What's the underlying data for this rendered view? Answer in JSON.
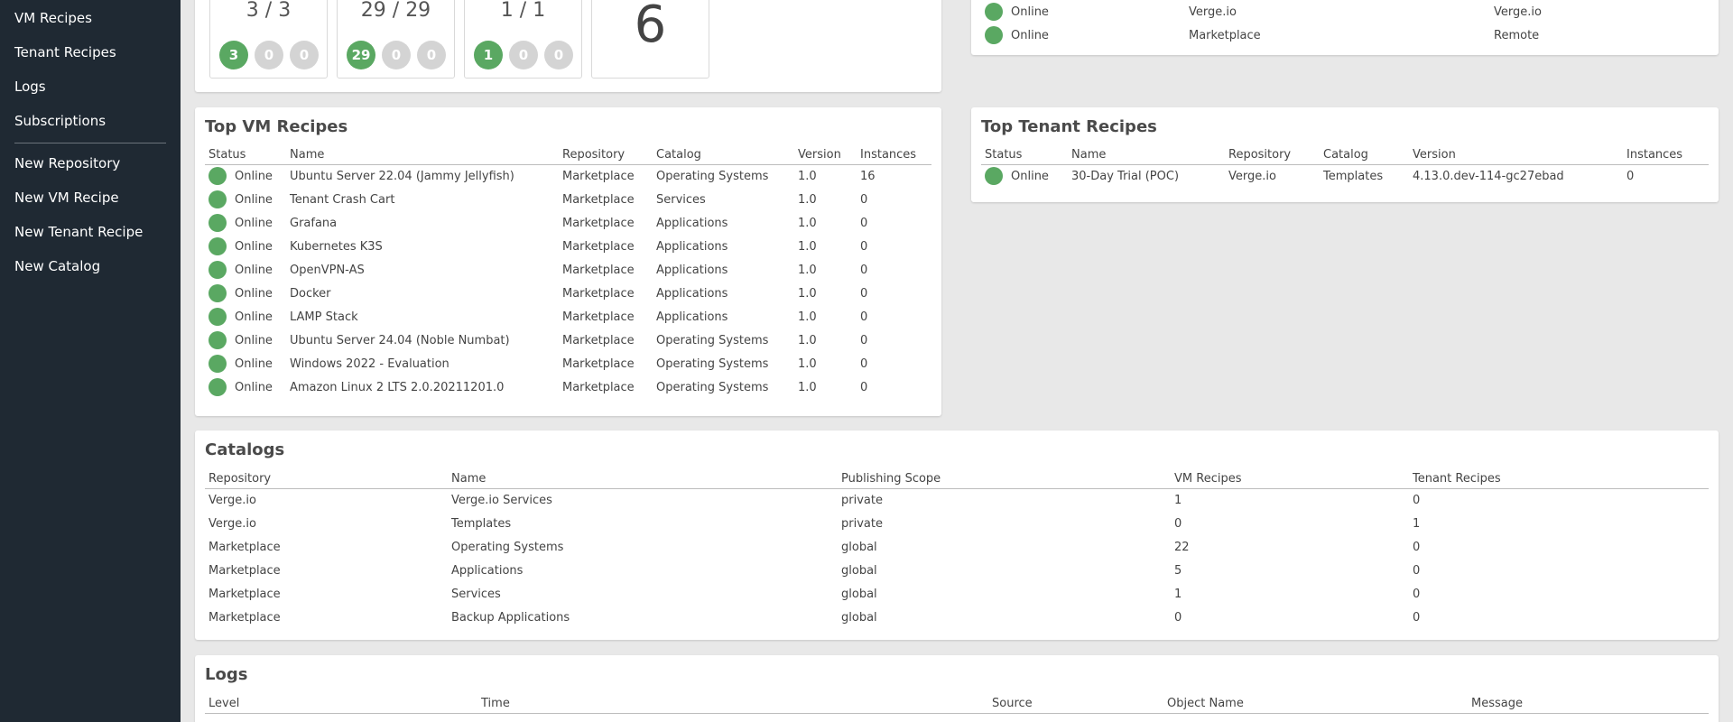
{
  "sidebar": {
    "items_top": [
      "VM Recipes",
      "Tenant Recipes",
      "Logs",
      "Subscriptions"
    ],
    "items_bottom": [
      "New Repository",
      "New VM Recipe",
      "New Tenant Recipe",
      "New Catalog"
    ]
  },
  "stats": {
    "cards": [
      {
        "ratio": "3 / 3",
        "badges": [
          "3",
          "0",
          "0"
        ]
      },
      {
        "ratio": "29 / 29",
        "badges": [
          "29",
          "0",
          "0"
        ]
      },
      {
        "ratio": "1 / 1",
        "badges": [
          "1",
          "0",
          "0"
        ]
      }
    ],
    "big_number": "6"
  },
  "repositories_partial": {
    "rows": [
      {
        "status": "Online",
        "name": "Verge.io",
        "type": "Verge.io"
      },
      {
        "status": "Online",
        "name": "Marketplace",
        "type": "Remote"
      }
    ]
  },
  "top_vm_recipes": {
    "title": "Top VM Recipes",
    "headers": [
      "Status",
      "Name",
      "Repository",
      "Catalog",
      "Version",
      "Instances"
    ],
    "rows": [
      {
        "status": "Online",
        "name": "Ubuntu Server 22.04 (Jammy Jellyfish)",
        "repository": "Marketplace",
        "catalog": "Operating Systems",
        "version": "1.0",
        "instances": "16"
      },
      {
        "status": "Online",
        "name": "Tenant Crash Cart",
        "repository": "Marketplace",
        "catalog": "Services",
        "version": "1.0",
        "instances": "0"
      },
      {
        "status": "Online",
        "name": "Grafana",
        "repository": "Marketplace",
        "catalog": "Applications",
        "version": "1.0",
        "instances": "0"
      },
      {
        "status": "Online",
        "name": "Kubernetes K3S",
        "repository": "Marketplace",
        "catalog": "Applications",
        "version": "1.0",
        "instances": "0"
      },
      {
        "status": "Online",
        "name": "OpenVPN-AS",
        "repository": "Marketplace",
        "catalog": "Applications",
        "version": "1.0",
        "instances": "0"
      },
      {
        "status": "Online",
        "name": "Docker",
        "repository": "Marketplace",
        "catalog": "Applications",
        "version": "1.0",
        "instances": "0"
      },
      {
        "status": "Online",
        "name": "LAMP Stack",
        "repository": "Marketplace",
        "catalog": "Applications",
        "version": "1.0",
        "instances": "0"
      },
      {
        "status": "Online",
        "name": "Ubuntu Server 24.04 (Noble Numbat)",
        "repository": "Marketplace",
        "catalog": "Operating Systems",
        "version": "1.0",
        "instances": "0"
      },
      {
        "status": "Online",
        "name": "Windows 2022 - Evaluation",
        "repository": "Marketplace",
        "catalog": "Operating Systems",
        "version": "1.0",
        "instances": "0"
      },
      {
        "status": "Online",
        "name": "Amazon Linux 2 LTS 2.0.20211201.0",
        "repository": "Marketplace",
        "catalog": "Operating Systems",
        "version": "1.0",
        "instances": "0"
      }
    ]
  },
  "top_tenant_recipes": {
    "title": "Top Tenant Recipes",
    "headers": [
      "Status",
      "Name",
      "Repository",
      "Catalog",
      "Version",
      "Instances"
    ],
    "rows": [
      {
        "status": "Online",
        "name": "30-Day Trial (POC)",
        "repository": "Verge.io",
        "catalog": "Templates",
        "version": "4.13.0.dev-114-gc27ebad",
        "instances": "0"
      }
    ]
  },
  "catalogs": {
    "title": "Catalogs",
    "headers": [
      "Repository",
      "Name",
      "Publishing Scope",
      "VM Recipes",
      "Tenant Recipes"
    ],
    "rows": [
      {
        "repository": "Verge.io",
        "name": "Verge.io Services",
        "scope": "private",
        "vm_recipes": "1",
        "tenant_recipes": "0"
      },
      {
        "repository": "Verge.io",
        "name": "Templates",
        "scope": "private",
        "vm_recipes": "0",
        "tenant_recipes": "1"
      },
      {
        "repository": "Marketplace",
        "name": "Operating Systems",
        "scope": "global",
        "vm_recipes": "22",
        "tenant_recipes": "0"
      },
      {
        "repository": "Marketplace",
        "name": "Applications",
        "scope": "global",
        "vm_recipes": "5",
        "tenant_recipes": "0"
      },
      {
        "repository": "Marketplace",
        "name": "Services",
        "scope": "global",
        "vm_recipes": "1",
        "tenant_recipes": "0"
      },
      {
        "repository": "Marketplace",
        "name": "Backup Applications",
        "scope": "global",
        "vm_recipes": "0",
        "tenant_recipes": "0"
      }
    ]
  },
  "logs": {
    "title": "Logs",
    "headers": [
      "Level",
      "Time",
      "Source",
      "Object Name",
      "Message"
    ]
  },
  "colors": {
    "sidebar_bg": "#1f2933",
    "status_online": "#5aa862",
    "badge_inactive": "#d4d4d4",
    "page_bg": "#e8e8e8"
  }
}
